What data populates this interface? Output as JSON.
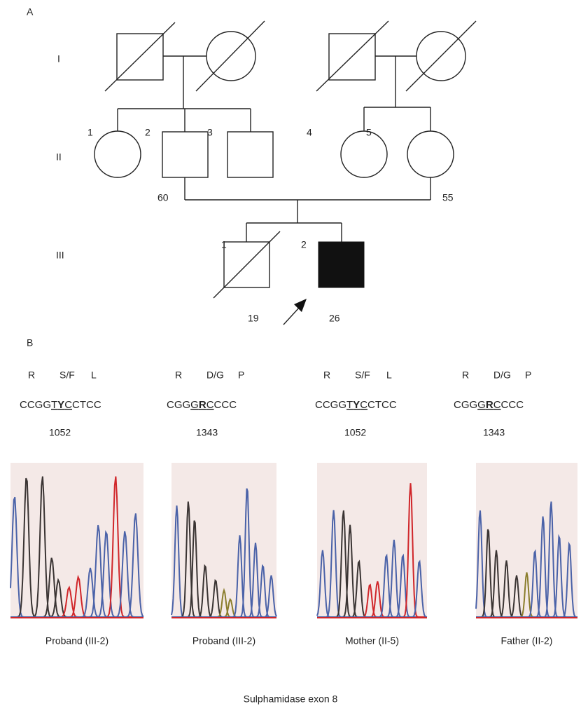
{
  "figure_label_a": "A",
  "generations": [
    "I",
    "II",
    "III"
  ],
  "individual_numbers": {
    "gen2": [
      "1",
      "2",
      "3",
      "4",
      "5"
    ],
    "gen3": [
      "1",
      "2"
    ]
  },
  "ages": [
    "60",
    "55",
    "19",
    "26"
  ],
  "figure_label_b": "B",
  "panels": [
    {
      "codons": [
        "R",
        "S/F",
        "L"
      ],
      "sequence": {
        "pre": "CCGG",
        "ul1": "T",
        "bold": "Y",
        "ul2": "C",
        "post": "CTCC"
      },
      "position": "1052",
      "caption": "Proband (III-2)"
    },
    {
      "codons": [
        "R",
        "D/G",
        "P"
      ],
      "sequence": {
        "pre": "CGG",
        "ul1": "G",
        "bold": "R",
        "ul2": "C",
        "post": "CCC"
      },
      "position": "1343",
      "caption": "Proband (III-2)"
    },
    {
      "codons": [
        "R",
        "S/F",
        "L"
      ],
      "sequence": {
        "pre": "CCGG",
        "ul1": "T",
        "bold": "Y",
        "ul2": "C",
        "post": "CTCC"
      },
      "position": "1052",
      "caption": "Mother (II-5)"
    },
    {
      "codons": [
        "R",
        "D/G",
        "P"
      ],
      "sequence": {
        "pre": "CGG",
        "ul1": "G",
        "bold": "R",
        "ul2": "C",
        "post": "CCC"
      },
      "position": "1343",
      "caption": "Father (II-2)"
    }
  ],
  "footer": "Sulphamidase exon 8"
}
